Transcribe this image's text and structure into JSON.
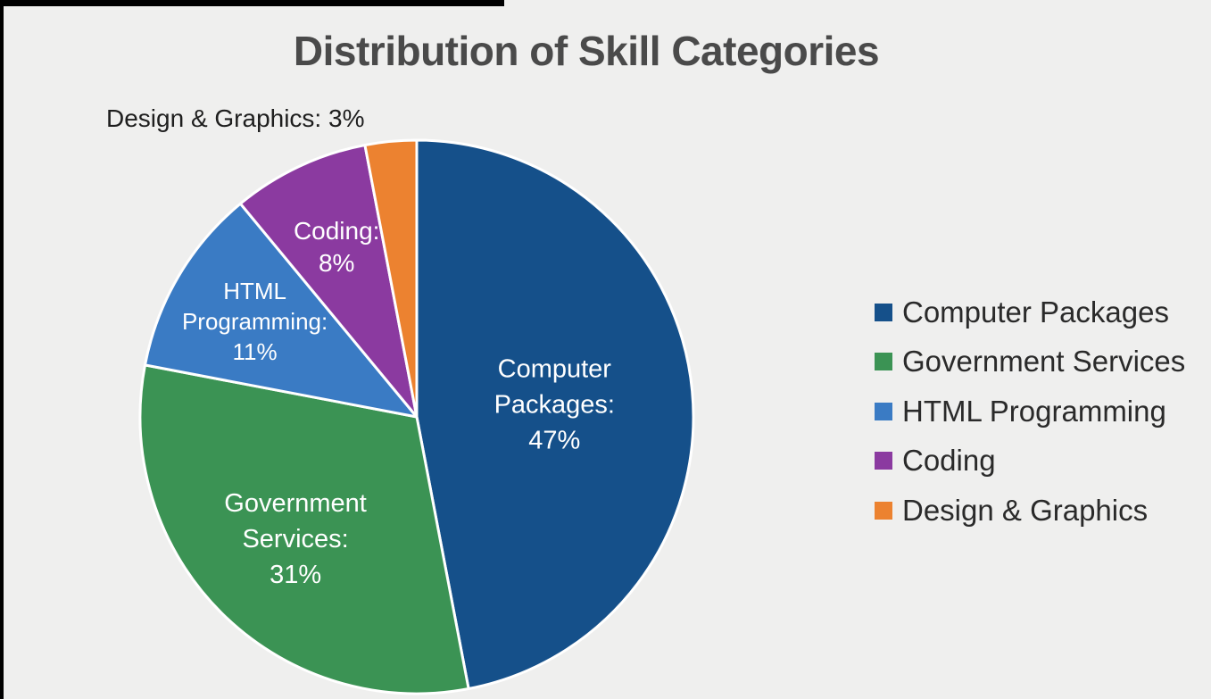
{
  "chart_data": {
    "type": "pie",
    "title": "Distribution of Skill Categories",
    "slices": [
      {
        "name": "Computer Packages",
        "value": 47,
        "color": "#15508a",
        "label_lines": [
          "Computer",
          "Packages:",
          "47%"
        ]
      },
      {
        "name": "Government Services",
        "value": 31,
        "color": "#3b9354",
        "label_lines": [
          "Government",
          "Services:",
          "31%"
        ]
      },
      {
        "name": "HTML Programming",
        "value": 11,
        "color": "#3a7bc4",
        "label_lines": [
          "HTML",
          "Programming:",
          "11%"
        ]
      },
      {
        "name": "Coding",
        "value": 8,
        "color": "#8b3aa0",
        "label_lines": [
          "Coding:",
          "8%"
        ]
      },
      {
        "name": "Design & Graphics",
        "value": 3,
        "color": "#ec8230",
        "label_lines": [],
        "outside_label": "Design & Graphics: 3%"
      }
    ],
    "legend": {
      "position": "right",
      "entries": [
        "Computer Packages",
        "Government Services",
        "HTML Programming",
        "Coding",
        "Design & Graphics"
      ]
    }
  }
}
